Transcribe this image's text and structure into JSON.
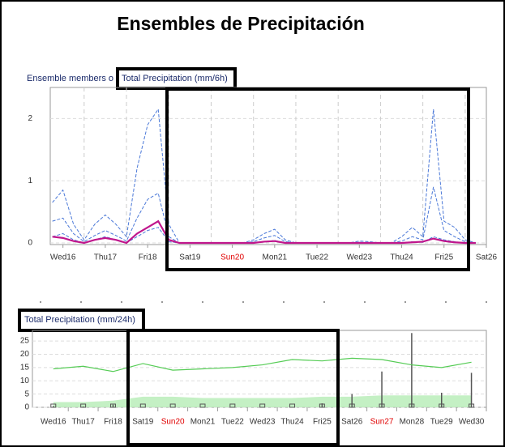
{
  "title": "Ensembles de Precipitación",
  "chart_data": [
    {
      "type": "line",
      "title": "Ensemble members o",
      "annotation": "Total Precipitation (mm/6h)",
      "x": [
        0.25,
        0.5,
        0.75,
        1,
        1.25,
        1.5,
        1.75,
        2,
        2.25,
        2.5,
        2.75,
        3,
        3.25,
        3.5,
        3.75,
        4,
        4.25,
        4.5,
        4.75,
        5,
        5.25,
        5.5,
        5.75,
        6,
        6.25,
        6.5,
        6.75,
        7,
        7.25,
        7.5,
        7.75,
        8,
        8.25,
        8.5,
        8.75,
        9,
        9.25,
        9.5,
        9.75,
        10,
        10.25
      ],
      "xlim": [
        0.2,
        10.5
      ],
      "xticks": [
        {
          "value": 0.5,
          "label": "Wed16"
        },
        {
          "value": 1.5,
          "label": "Thu17"
        },
        {
          "value": 2.5,
          "label": "Fri18"
        },
        {
          "value": 3.5,
          "label": "Sat19"
        },
        {
          "value": 4.5,
          "label": "Sun20"
        },
        {
          "value": 5.5,
          "label": "Mon21"
        },
        {
          "value": 6.5,
          "label": "Tue22"
        },
        {
          "value": 7.5,
          "label": "Wed23"
        },
        {
          "value": 8.5,
          "label": "Thu24"
        },
        {
          "value": 9.5,
          "label": "Fri25"
        },
        {
          "value": 10.5,
          "label": "Sat26"
        }
      ],
      "ylim": [
        0,
        2.5
      ],
      "yticks": [
        0,
        1,
        2
      ],
      "grid": true,
      "series": [
        {
          "color": "#4a78d8",
          "dashed": true,
          "values": [
            0.65,
            0.85,
            0.3,
            0.05,
            0.3,
            0.45,
            0.3,
            0.1,
            1.2,
            1.9,
            2.15,
            0.3,
            0,
            0,
            0,
            0,
            0,
            0,
            0,
            0.05,
            0.15,
            0.22,
            0.05,
            0,
            0,
            0,
            0,
            0,
            0,
            0.03,
            0.02,
            0,
            0,
            0.1,
            0.25,
            0.1,
            2.15,
            0.35,
            0.25,
            0.05,
            0
          ]
        },
        {
          "color": "#4a78d8",
          "dashed": true,
          "values": [
            0.35,
            0.4,
            0.15,
            0.02,
            0.12,
            0.2,
            0.12,
            0.03,
            0.4,
            0.7,
            0.8,
            0.1,
            0,
            0,
            0,
            0,
            0,
            0,
            0,
            0.02,
            0.08,
            0.12,
            0.02,
            0,
            0,
            0,
            0,
            0,
            0,
            0.01,
            0,
            0,
            0,
            0.03,
            0.1,
            0.05,
            0.9,
            0.2,
            0.1,
            0.02,
            0
          ]
        },
        {
          "color": "#4a78d8",
          "dashed": true,
          "values": [
            0.1,
            0.15,
            0.05,
            0,
            0.05,
            0.1,
            0.05,
            0,
            0.1,
            0.2,
            0.25,
            0.02,
            0,
            0,
            0,
            0,
            0,
            0,
            0,
            0,
            0.02,
            0.04,
            0,
            0,
            0,
            0,
            0,
            0,
            0,
            0,
            0,
            0,
            0,
            0,
            0.02,
            0.01,
            0.1,
            0.05,
            0.02,
            0,
            0
          ]
        },
        {
          "color": "#c0168c",
          "dashed": false,
          "values": [
            0.1,
            0.08,
            0.03,
            0,
            0.05,
            0.08,
            0.05,
            0,
            0.15,
            0.25,
            0.35,
            0.05,
            0,
            0,
            0,
            0,
            0,
            0,
            0,
            0,
            0.02,
            0.03,
            0,
            0,
            0,
            0,
            0,
            0,
            0,
            0,
            0,
            0,
            0,
            0,
            0.01,
            0.02,
            0.07,
            0.03,
            0.01,
            0,
            0
          ]
        }
      ]
    },
    {
      "type": "combo",
      "title": "Total Precipitation (mm/24h)",
      "categories": [
        "Wed16",
        "Thu17",
        "Fri18",
        "Sat19",
        "Sun20",
        "Mon21",
        "Tue22",
        "Wed23",
        "Thu24",
        "Fri25",
        "Sat26",
        "Sun27",
        "Mon28",
        "Tue29",
        "Wed30"
      ],
      "ylim": [
        0,
        29
      ],
      "yticks": [
        0,
        5,
        10,
        15,
        20,
        25
      ],
      "grid": true,
      "series": [
        {
          "kind": "area",
          "color": "#b5ecb5",
          "values": [
            2,
            2,
            2.5,
            4,
            4,
            3.5,
            3.5,
            3.5,
            3.5,
            4,
            4,
            4.5,
            4.5,
            4.5,
            4.5
          ]
        },
        {
          "kind": "whisker",
          "color": "#555555",
          "values": [
            0.5,
            0.3,
            1,
            0,
            0,
            0,
            0,
            0,
            0,
            1.5,
            5,
            13.5,
            28,
            5.5,
            13
          ]
        },
        {
          "kind": "line",
          "color": "#55cc55",
          "values": [
            14.5,
            15.5,
            13.5,
            16.5,
            14,
            14.5,
            15,
            16,
            18,
            17.5,
            18.5,
            18,
            16,
            15,
            17
          ]
        }
      ]
    }
  ]
}
